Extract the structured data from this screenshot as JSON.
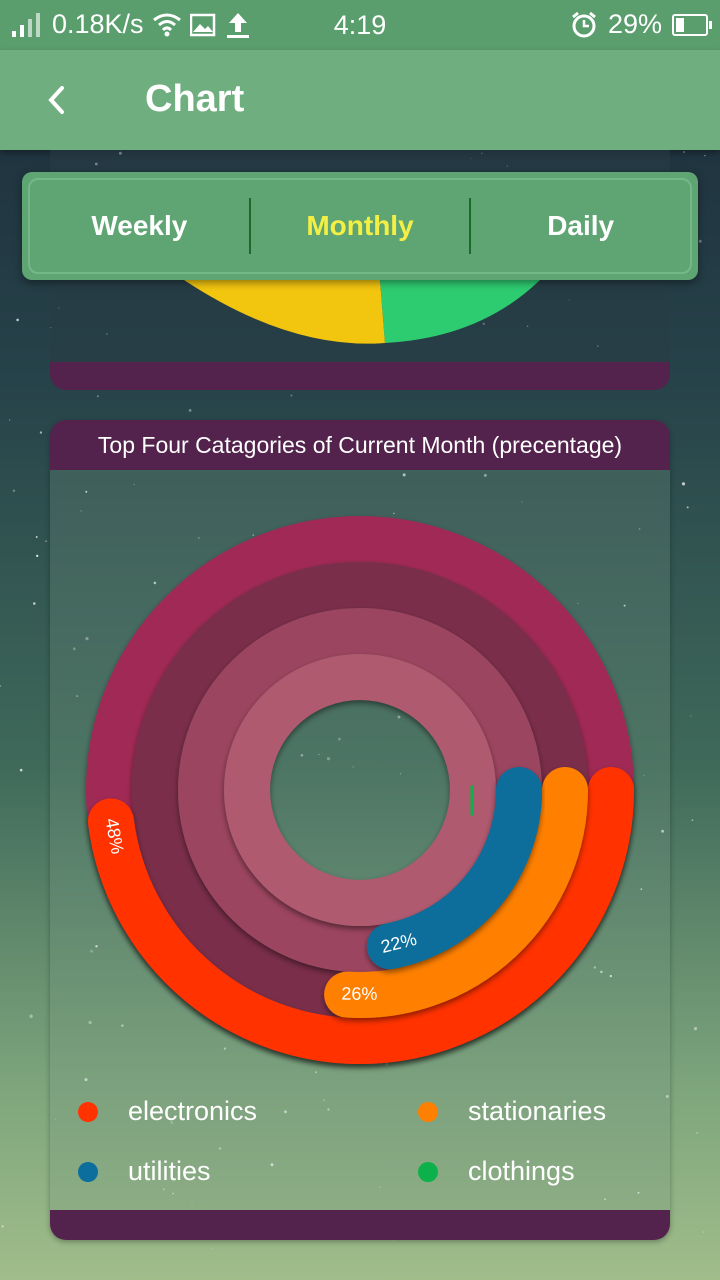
{
  "status_bar": {
    "speed": "0.18K/s",
    "time": "4:19",
    "battery": "29%",
    "battery_level": 0.29
  },
  "app_bar": {
    "title": "Chart",
    "back_icon": "chevron-left-icon"
  },
  "tabs": [
    {
      "label": "Weekly",
      "active": false
    },
    {
      "label": "Monthly",
      "active": true
    },
    {
      "label": "Daily",
      "active": false
    }
  ],
  "colors": {
    "tab_active": "#f4ef45",
    "card_header": "#53234d",
    "appbar": "#6fae7f"
  },
  "chart_data": {
    "type": "radial-bar",
    "title": "Top Four Catagories of Current Month (precentage)",
    "series": [
      {
        "name": "electronics",
        "value": 48,
        "label": "48%",
        "color": "#ff3300",
        "track_color": "#a02a55"
      },
      {
        "name": "stationaries",
        "value": 26,
        "label": "26%",
        "color": "#ff8000",
        "track_color": "#7a2e4a"
      },
      {
        "name": "utilities",
        "value": 22,
        "label": "22%",
        "color": "#0b6e9c",
        "track_color": "#9c4560"
      },
      {
        "name": "clothings",
        "value": 3,
        "label": "",
        "color": "#0db14b",
        "track_color": "#b05a70"
      }
    ],
    "legend_position": "bottom"
  }
}
